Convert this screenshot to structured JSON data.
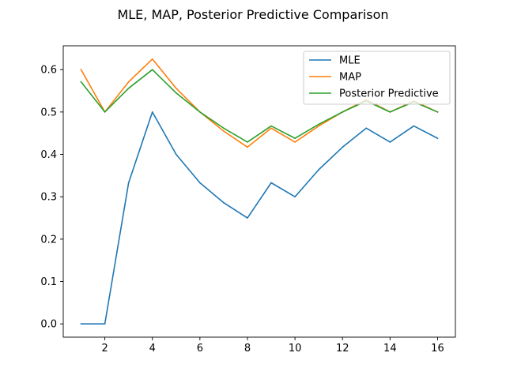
{
  "chart_data": {
    "type": "line",
    "title": "MLE, MAP, Posterior Predictive Comparison",
    "xlabel": "",
    "ylabel": "",
    "x": [
      1,
      2,
      3,
      4,
      5,
      6,
      7,
      8,
      9,
      10,
      11,
      12,
      13,
      14,
      15,
      16
    ],
    "xlim": [
      0.25,
      16.75
    ],
    "ylim": [
      -0.03125,
      0.65625
    ],
    "xticks": [
      2,
      4,
      6,
      8,
      10,
      12,
      14,
      16
    ],
    "yticks": [
      0.0,
      0.1,
      0.2,
      0.3,
      0.4,
      0.5,
      0.6
    ],
    "ytick_labels": [
      "0.0",
      "0.1",
      "0.2",
      "0.3",
      "0.4",
      "0.5",
      "0.6"
    ],
    "grid": false,
    "legend_position": "top-right",
    "series": [
      {
        "name": "MLE",
        "color": "#1f77b4",
        "values": [
          0.0,
          0.0,
          0.333,
          0.5,
          0.4,
          0.333,
          0.286,
          0.25,
          0.333,
          0.3,
          0.364,
          0.417,
          0.462,
          0.429,
          0.467,
          0.438
        ]
      },
      {
        "name": "MAP",
        "color": "#ff7f0e",
        "values": [
          0.6,
          0.5,
          0.571,
          0.625,
          0.556,
          0.5,
          0.455,
          0.417,
          0.462,
          0.429,
          0.467,
          0.5,
          0.529,
          0.5,
          0.526,
          0.5
        ]
      },
      {
        "name": "Posterior Predictive",
        "color": "#2ca02c",
        "values": [
          0.571,
          0.5,
          0.556,
          0.6,
          0.545,
          0.5,
          0.462,
          0.429,
          0.467,
          0.438,
          0.471,
          0.5,
          0.526,
          0.5,
          0.524,
          0.5
        ]
      }
    ]
  }
}
